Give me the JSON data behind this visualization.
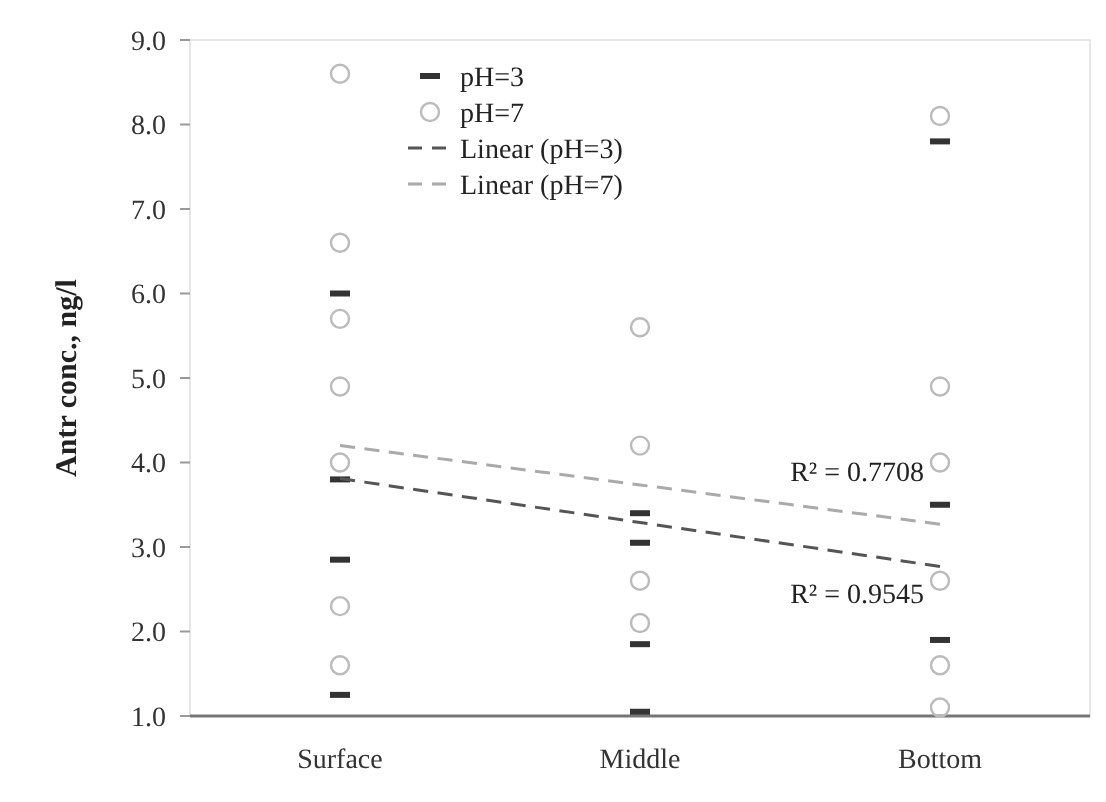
{
  "chart_data": {
    "type": "scatter",
    "ylabel": "Antr conc., ng/l",
    "categories": [
      "Surface",
      "Middle",
      "Bottom"
    ],
    "ylim": [
      1,
      9
    ],
    "yticks": [
      {
        "value": 1,
        "label": "1.0"
      },
      {
        "value": 2,
        "label": "2.0"
      },
      {
        "value": 3,
        "label": "3.0"
      },
      {
        "value": 4,
        "label": "4.0"
      },
      {
        "value": 5,
        "label": "5.0"
      },
      {
        "value": 6,
        "label": "6.0"
      },
      {
        "value": 7,
        "label": "7.0"
      },
      {
        "value": 8,
        "label": "8.0"
      },
      {
        "value": 9,
        "label": "9.0"
      }
    ],
    "legend": "top",
    "series": [
      {
        "name": "pH=3",
        "marker": "square",
        "color": "#333333",
        "x": [
          "Surface",
          "Surface",
          "Surface",
          "Surface",
          "Middle",
          "Middle",
          "Middle",
          "Middle",
          "Bottom",
          "Bottom",
          "Bottom"
        ],
        "values": [
          6.0,
          3.8,
          2.85,
          1.25,
          3.4,
          3.05,
          1.85,
          1.05,
          7.8,
          3.5,
          1.9
        ]
      },
      {
        "name": "pH=7",
        "marker": "circle",
        "color": "#bbbbbb",
        "x": [
          "Surface",
          "Surface",
          "Surface",
          "Surface",
          "Surface",
          "Surface",
          "Surface",
          "Middle",
          "Middle",
          "Middle",
          "Middle",
          "Bottom",
          "Bottom",
          "Bottom",
          "Bottom",
          "Bottom",
          "Bottom"
        ],
        "values": [
          8.6,
          6.6,
          5.7,
          4.9,
          4.0,
          2.3,
          1.6,
          5.6,
          4.2,
          2.6,
          2.1,
          8.1,
          4.9,
          4.0,
          2.6,
          1.6,
          1.1
        ]
      },
      {
        "name": "Linear (pH=3)",
        "type": "line",
        "line_style": "dashed",
        "marker": "none",
        "color": "#555555",
        "values": [
          3.81,
          3.29,
          2.77
        ]
      },
      {
        "name": "Linear (pH=7)",
        "type": "line",
        "line_style": "dashed",
        "marker": "none",
        "color": "#aaaaaa",
        "values": [
          4.2,
          3.735,
          3.27
        ]
      }
    ],
    "annotations": [
      {
        "text": "R² = 0.7708",
        "x": "Bottom",
        "y": 3.9
      },
      {
        "text": "R² = 0.9545",
        "x": "Bottom",
        "y": 2.45
      }
    ]
  }
}
